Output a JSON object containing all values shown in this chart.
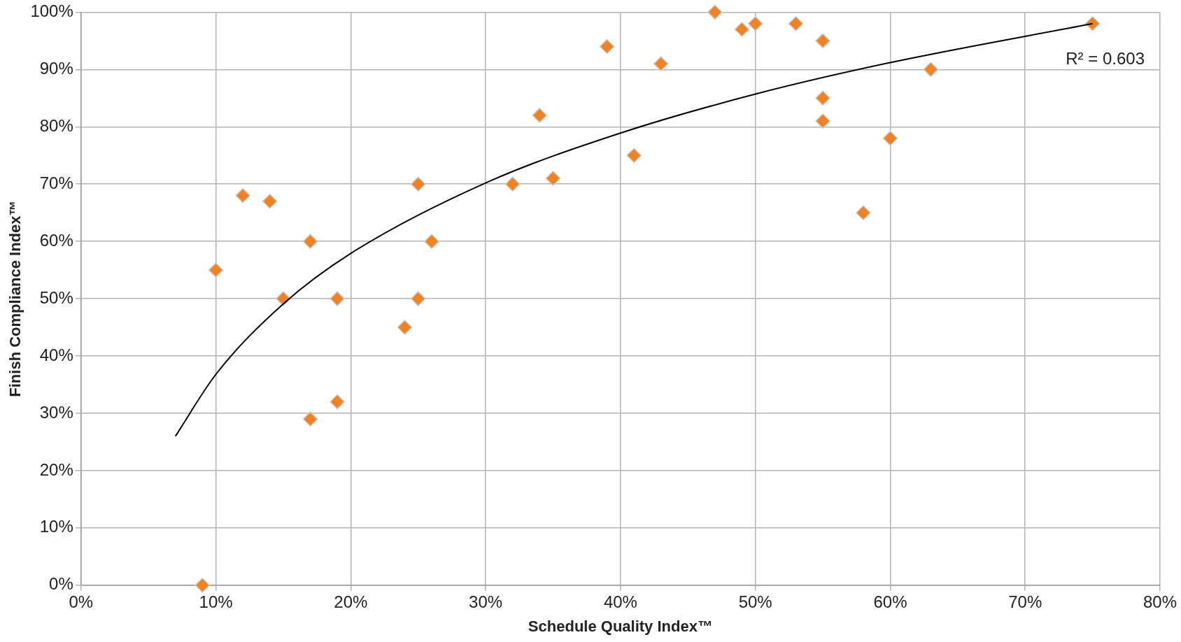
{
  "chart_data": {
    "type": "scatter",
    "xlabel": "Schedule Quality Index™",
    "ylabel": "Finish Compliance Index™",
    "annotations": [
      "R² = 0.603"
    ],
    "xlim": [
      0,
      80
    ],
    "ylim": [
      0,
      100
    ],
    "xticks": [
      {
        "value": 0,
        "label": "0%"
      },
      {
        "value": 10,
        "label": "10%"
      },
      {
        "value": 20,
        "label": "20%"
      },
      {
        "value": 30,
        "label": "30%"
      },
      {
        "value": 40,
        "label": "40%"
      },
      {
        "value": 50,
        "label": "50%"
      },
      {
        "value": 60,
        "label": "60%"
      },
      {
        "value": 70,
        "label": "70%"
      },
      {
        "value": 80,
        "label": "80%"
      }
    ],
    "yticks": [
      {
        "value": 0,
        "label": "0%"
      },
      {
        "value": 10,
        "label": "10%"
      },
      {
        "value": 20,
        "label": "20%"
      },
      {
        "value": 30,
        "label": "30%"
      },
      {
        "value": 40,
        "label": "40%"
      },
      {
        "value": 50,
        "label": "50%"
      },
      {
        "value": 60,
        "label": "60%"
      },
      {
        "value": 70,
        "label": "70%"
      },
      {
        "value": 80,
        "label": "80%"
      },
      {
        "value": 90,
        "label": "90%"
      },
      {
        "value": 100,
        "label": "100%"
      }
    ],
    "grid": true,
    "legend": false,
    "series": [
      {
        "type": "scatter",
        "marker": "diamond",
        "color": "#f4811f",
        "x": [
          9,
          10,
          12,
          14,
          15,
          17,
          17,
          19,
          19,
          24,
          25,
          25,
          26,
          32,
          34,
          35,
          39,
          41,
          43,
          47,
          49,
          50,
          53,
          55,
          55,
          55,
          58,
          60,
          63,
          75
        ],
        "values": [
          0,
          55,
          68,
          67,
          50,
          60,
          29,
          50,
          32,
          45,
          70,
          50,
          60,
          70,
          82,
          71,
          94,
          75,
          91,
          100,
          97,
          98,
          98,
          95,
          85,
          81,
          65,
          78,
          90,
          98
        ]
      },
      {
        "type": "line",
        "marker": "none",
        "line_style": "solid",
        "color": "#000000",
        "x": [
          7,
          10,
          15,
          20,
          30,
          40,
          50,
          60,
          75
        ],
        "values": [
          26,
          36.8,
          49.1,
          57.9,
          70.2,
          78.9,
          85.7,
          91.2,
          98
        ]
      }
    ]
  }
}
